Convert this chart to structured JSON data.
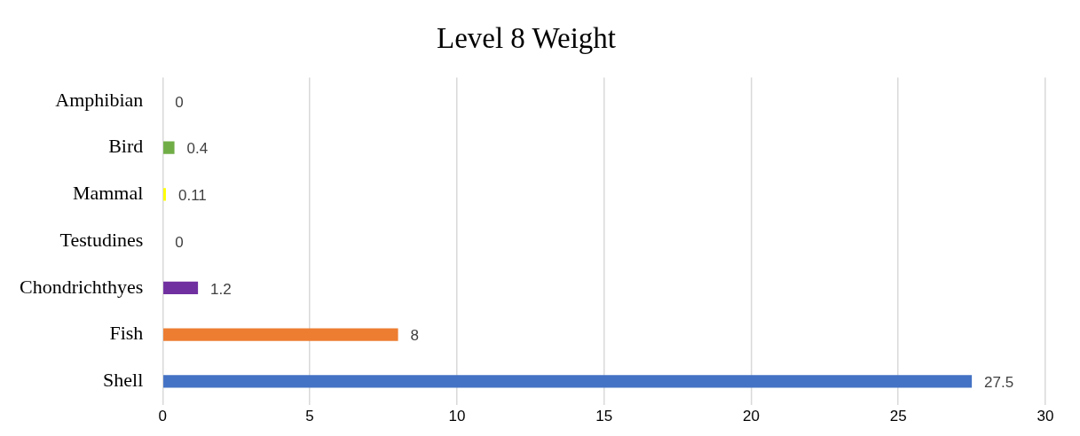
{
  "chart_data": {
    "type": "bar",
    "orientation": "horizontal",
    "title": "Level 8 Weight",
    "categories": [
      "Amphibian",
      "Bird",
      "Mammal",
      "Testudines",
      "Chondrichthyes",
      "Fish",
      "Shell"
    ],
    "values": [
      0,
      0.4,
      0.11,
      0,
      1.2,
      8,
      27.5
    ],
    "colors": [
      "#5b9bd5",
      "#70ad47",
      "#ffff00",
      "#a5a5a5",
      "#7030a0",
      "#ed7d31",
      "#4472c4"
    ],
    "xlim": [
      0,
      30
    ],
    "xticks": [
      0,
      5,
      10,
      15,
      20,
      25,
      30
    ],
    "grid": "x",
    "data_labels": true,
    "legend": false
  }
}
